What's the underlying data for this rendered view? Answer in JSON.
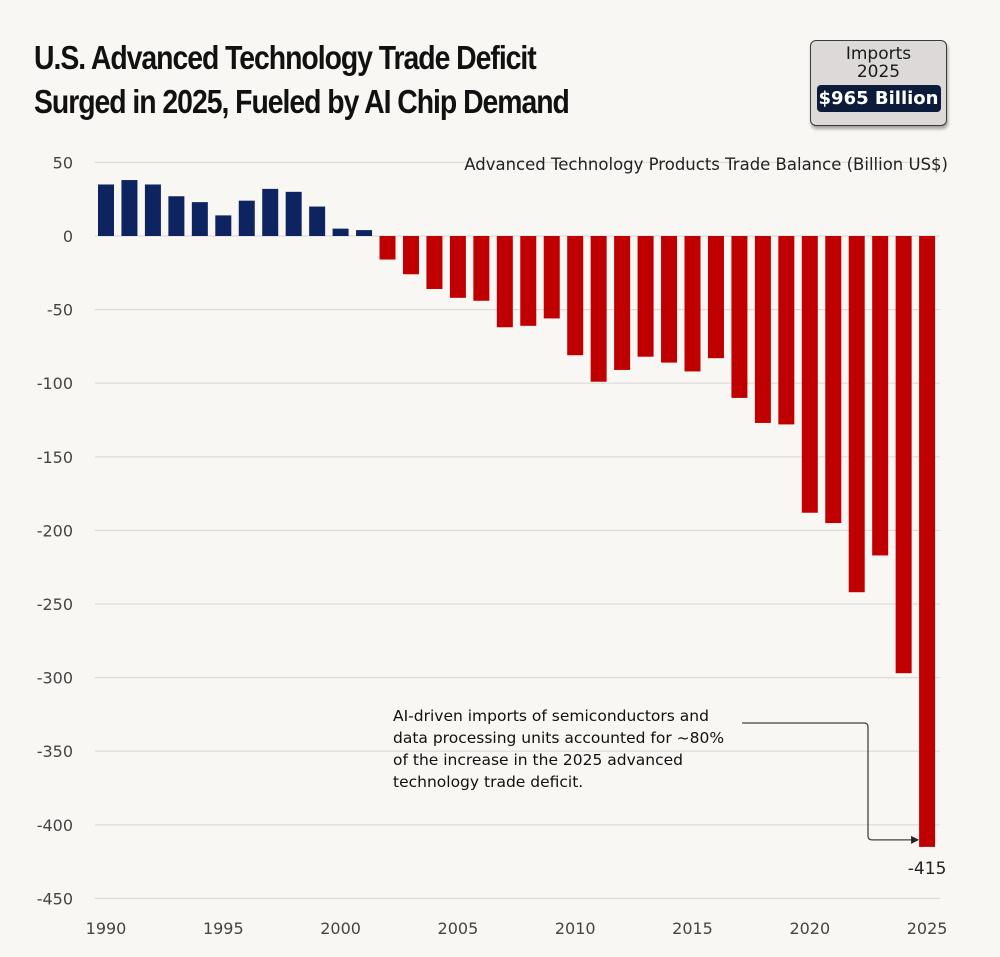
{
  "title": "U.S. Advanced Technology Trade Deficit\nSurged in 2025, Fueled by AI Chip Demand",
  "title_lines": [
    "U.S. Advanced Technology Trade Deficit",
    "Surged in 2025, Fueled by AI Chip Demand"
  ],
  "badge": {
    "label_line1": "Imports",
    "label_line2": "2025",
    "value": "$965 Billion"
  },
  "annotation": "AI-driven imports of semiconductors and\ndata processing units accounted for ~80%\nof the increase in the 2025 advanced\ntechnology trade deficit.",
  "colors": {
    "surplus": "#0d2461",
    "deficit": "#c00000",
    "grid": "#dcdcd8",
    "background": "#f8f7f3"
  },
  "chart_data": {
    "type": "bar",
    "title": "U.S. Advanced Technology Trade Deficit Surged in 2025, Fueled by AI Chip Demand",
    "subtitle": "Advanced Technology Products Trade Balance (Billion US$)",
    "xlabel": "",
    "ylabel": "",
    "ylim": [
      -450,
      50
    ],
    "yticks": [
      50,
      0,
      -50,
      -100,
      -150,
      -200,
      -250,
      -300,
      -350,
      -400,
      -450
    ],
    "xticks": [
      1990,
      1995,
      2000,
      2005,
      2010,
      2015,
      2020,
      2025
    ],
    "grid": true,
    "categories": [
      1990,
      1991,
      1992,
      1993,
      1994,
      1995,
      1996,
      1997,
      1998,
      1999,
      2000,
      2001,
      2002,
      2003,
      2004,
      2005,
      2006,
      2007,
      2008,
      2009,
      2010,
      2011,
      2012,
      2013,
      2014,
      2015,
      2016,
      2017,
      2018,
      2019,
      2020,
      2021,
      2022,
      2023,
      2024,
      2025
    ],
    "values": [
      35,
      38,
      35,
      27,
      23,
      14,
      24,
      32,
      30,
      20,
      5,
      4,
      -16,
      -26,
      -36,
      -42,
      -44,
      -62,
      -61,
      -56,
      -81,
      -99,
      -91,
      -82,
      -86,
      -92,
      -83,
      -110,
      -127,
      -128,
      -188,
      -195,
      -242,
      -217,
      -297,
      -415
    ],
    "data_labels": [
      {
        "category": 2025,
        "text": "-415"
      }
    ],
    "annotations": [
      {
        "target": 2025,
        "text": "AI-driven imports of semiconductors and data processing units accounted for ~80% of the increase in the 2025 advanced technology trade deficit."
      }
    ]
  }
}
